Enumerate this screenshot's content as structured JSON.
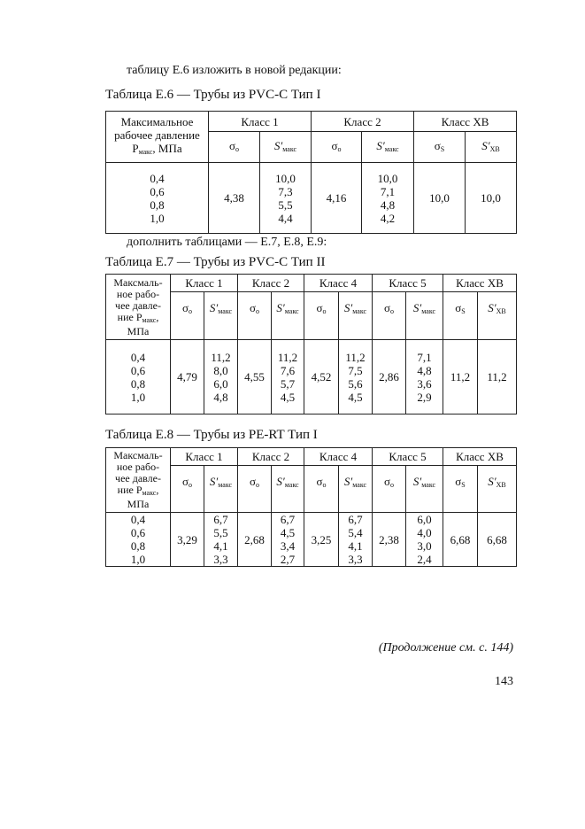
{
  "intro_e6": "таблицу Е.6 изложить в новой редакции:",
  "table_e6": {
    "caption": "Таблица Е.6 — Трубы из PVC-C Тип I",
    "pressure_header": [
      "Максимальное",
      "рабочее давление",
      "P",
      "макс",
      ", МПа"
    ],
    "classes": [
      "Класс 1",
      "Класс 2",
      "Класс ХВ"
    ],
    "sigma": "σ",
    "sigma_sub_o": "о",
    "sigma_sub_s": "S",
    "s_prime": "S′",
    "s_sub_max": "макс",
    "s_sub_xb": "ХВ",
    "pressures": [
      "0,4",
      "0,6",
      "0,8",
      "1,0"
    ],
    "sigma_values": [
      "4,38",
      "4,16",
      "10,0"
    ],
    "s_values": [
      [
        "10,0",
        "7,3",
        "5,5",
        "4,4"
      ],
      [
        "10,0",
        "7,1",
        "4,8",
        "4,2"
      ]
    ],
    "s_xb": "10,0"
  },
  "intro_e7": "дополнить таблицами — Е.7, Е.8, Е.9:",
  "table_e7": {
    "caption": "Таблица Е.7 — Трубы из PVC-C Тип II",
    "pressure_header": [
      "Максмаль-",
      "ное рабо-",
      "чее давле-",
      "ние P",
      "макс",
      ",",
      "МПа"
    ],
    "classes": [
      "Класс 1",
      "Класс 2",
      "Класс 4",
      "Класс 5",
      "Класс ХВ"
    ],
    "pressures": [
      "0,4",
      "0,6",
      "0,8",
      "1,0"
    ],
    "sigma_values": [
      "4,79",
      "4,55",
      "4,52",
      "2,86",
      "11,2"
    ],
    "s_values": [
      [
        "11,2",
        "8,0",
        "6,0",
        "4,8"
      ],
      [
        "11,2",
        "7,6",
        "5,7",
        "4,5"
      ],
      [
        "11,2",
        "7,5",
        "5,6",
        "4,5"
      ],
      [
        "7,1",
        "4,8",
        "3,6",
        "2,9"
      ]
    ],
    "s_xb": "11,2"
  },
  "table_e8": {
    "caption": "Таблица Е.8 — Трубы из PE-RT Тип I",
    "pressure_header": [
      "Максмаль-",
      "ное рабо-",
      "чее давле-",
      "ние P",
      "макс",
      ",",
      "МПа"
    ],
    "classes": [
      "Класс 1",
      "Класс 2",
      "Класс 4",
      "Класс 5",
      "Класс ХВ"
    ],
    "pressures": [
      "0,4",
      "0,6",
      "0,8",
      "1,0"
    ],
    "sigma_values": [
      "3,29",
      "2,68",
      "3,25",
      "2,38",
      "6,68"
    ],
    "s_values": [
      [
        "6,7",
        "5,5",
        "4,1",
        "3,3"
      ],
      [
        "6,7",
        "4,5",
        "3,4",
        "2,7"
      ],
      [
        "6,7",
        "5,4",
        "4,1",
        "3,3"
      ],
      [
        "6,0",
        "4,0",
        "3,0",
        "2,4"
      ]
    ],
    "s_xb": "6,68"
  },
  "continuation": "(Продолжение см. с. 144)",
  "page_number": "143"
}
